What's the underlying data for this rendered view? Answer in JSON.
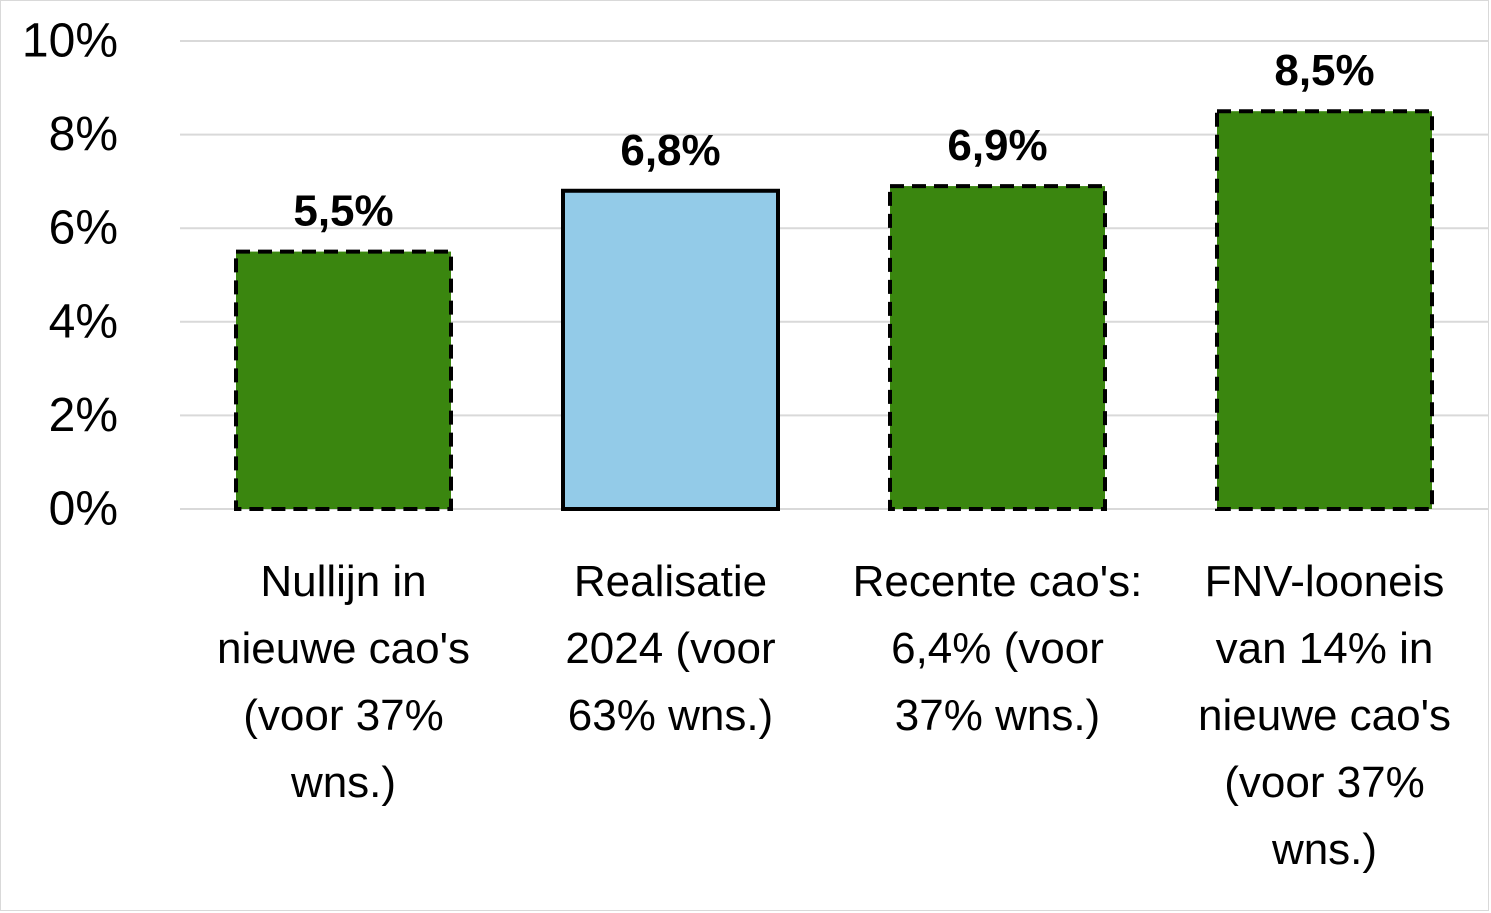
{
  "chart_data": {
    "type": "bar",
    "title": "",
    "xlabel": "",
    "ylabel": "",
    "ylim": [
      0,
      10
    ],
    "yticks": [
      0,
      2,
      4,
      6,
      8,
      10
    ],
    "ytick_labels": [
      "0%",
      "2%",
      "4%",
      "6%",
      "8%",
      "10%"
    ],
    "grid": true,
    "legend": "none",
    "categories": [
      [
        "Nullijn in",
        "nieuwe cao's",
        "(voor 37%",
        "wns.)"
      ],
      [
        "Realisatie",
        "2024 (voor",
        "63% wns.)"
      ],
      [
        "Recente cao's:",
        "6,4% (voor",
        "37% wns.)"
      ],
      [
        "FNV-looneis",
        "van 14% in",
        "nieuwe cao's",
        "(voor 37%",
        "wns.)"
      ]
    ],
    "values": [
      5.5,
      6.8,
      6.9,
      8.5
    ],
    "data_labels": [
      "5,5%",
      "6,8%",
      "6,9%",
      "8,5%"
    ],
    "bar_styles": [
      {
        "fill": "#3a860f",
        "border": "dashed"
      },
      {
        "fill": "#93cbe8",
        "border": "solid"
      },
      {
        "fill": "#3a860f",
        "border": "dashed"
      },
      {
        "fill": "#3a860f",
        "border": "dashed"
      }
    ],
    "colors": {
      "grid": "#d9d9d9",
      "border": "#000000"
    }
  }
}
